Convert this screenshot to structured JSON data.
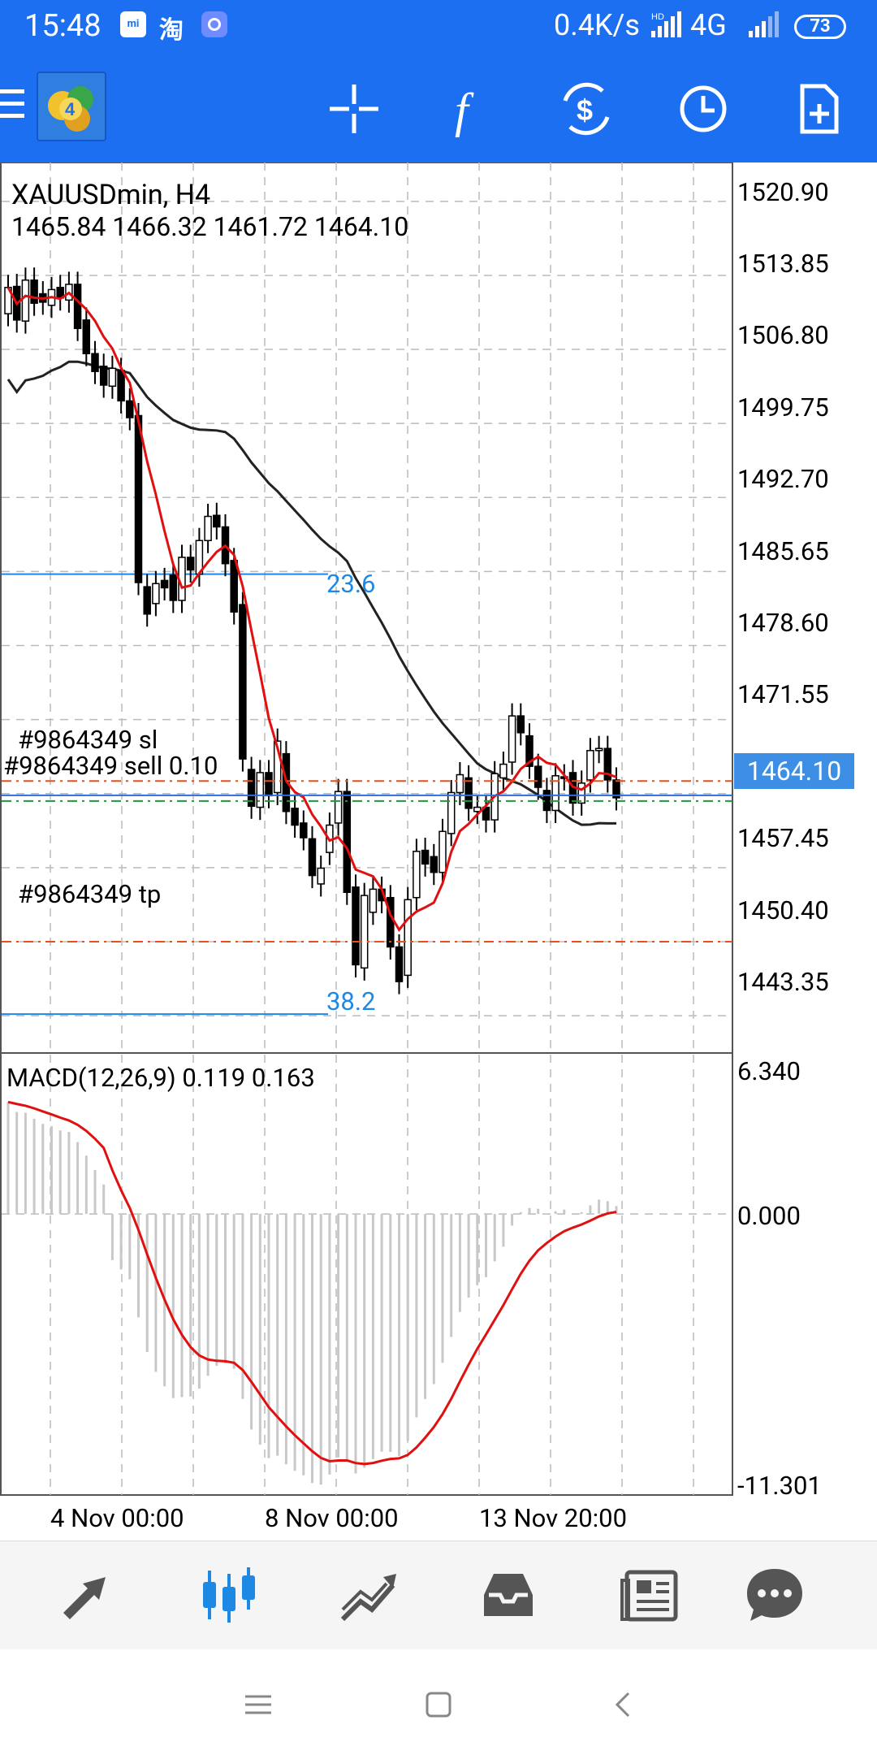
{
  "status_bar": {
    "time": "15:48",
    "mi_label": "mi",
    "tao_label": "淘",
    "net_speed": "0.4K/s",
    "hd_label": "HD",
    "network": "4G",
    "battery": "73"
  },
  "toolbar": {
    "buttons": [
      "crosshair",
      "indicators",
      "trade",
      "period",
      "new-order"
    ]
  },
  "chart": {
    "symbol_title": "XAUUSDmin, H4",
    "ohlc": "1465.84 1466.32 1461.72 1464.10",
    "price_axis": [
      "1520.90",
      "1513.85",
      "1506.80",
      "1499.75",
      "1492.70",
      "1485.65",
      "1478.60",
      "1471.55",
      "1457.45",
      "1450.40",
      "1443.35"
    ],
    "current_price": "1464.10",
    "fibo_23": "23.6",
    "fibo_38": "38.2",
    "order_sl": "#9864349 sl",
    "order_sell": "#9864349 sell 0.10",
    "order_tp": "#9864349 tp",
    "macd_title": "MACD(12,26,9) 0.119 0.163",
    "macd_axis_top": "6.340",
    "macd_axis_zero": "0.000",
    "macd_axis_bottom": "-11.301",
    "time_labels": [
      "4 Nov 00:00",
      "8 Nov 00:00",
      "13 Nov 20:00"
    ]
  },
  "chart_data": {
    "type": "candlestick",
    "symbol": "XAUUSDmin",
    "timeframe": "H4",
    "ylim": [
      1439.8,
      1524.6
    ],
    "open": [
      1510.2,
      1512.8,
      1509.5,
      1513.4,
      1512.1,
      1511.0,
      1512.7,
      1511.5,
      1513.0,
      1509.6,
      1506.4,
      1505.2,
      1503.3,
      1504.8,
      1501.9,
      1500.5,
      1484.2,
      1482.6,
      1484.8,
      1485.3,
      1482.9,
      1487.0,
      1485.4,
      1488.6,
      1491.0,
      1489.9,
      1486.7,
      1482.5,
      1466.8,
      1463.2,
      1466.5,
      1464.6,
      1468.3,
      1463.1,
      1461.7,
      1460.2,
      1455.9,
      1458.9,
      1461.7,
      1464.7,
      1455.6,
      1447.9,
      1453.2,
      1455.4,
      1454.6,
      1449.9,
      1447.2,
      1454.6,
      1459.1,
      1458.5,
      1457.0,
      1460.7,
      1464.6,
      1466.0,
      1462.8,
      1463.2,
      1462.0,
      1466.0,
      1467.5,
      1471.9,
      1470.0,
      1467.1,
      1464.8,
      1462.9,
      1466.1,
      1466.5,
      1463.6,
      1465.8,
      1468.6,
      1468.8,
      1465.8
    ],
    "close": [
      1512.7,
      1509.6,
      1513.4,
      1511.2,
      1511.3,
      1512.5,
      1511.7,
      1513.0,
      1508.8,
      1506.4,
      1504.7,
      1503.4,
      1505.0,
      1501.9,
      1500.3,
      1484.6,
      1481.6,
      1484.5,
      1484.1,
      1482.9,
      1487.0,
      1485.8,
      1488.6,
      1490.9,
      1489.9,
      1486.4,
      1481.8,
      1467.8,
      1463.3,
      1466.5,
      1464.3,
      1469.5,
      1462.8,
      1461.5,
      1460.3,
      1456.7,
      1457.4,
      1461.5,
      1464.7,
      1455.1,
      1448.2,
      1454.8,
      1455.4,
      1454.3,
      1449.9,
      1446.6,
      1454.4,
      1459.0,
      1457.8,
      1457.0,
      1460.9,
      1464.6,
      1466.3,
      1463.1,
      1463.2,
      1462.0,
      1466.4,
      1467.3,
      1471.9,
      1470.3,
      1467.1,
      1465.1,
      1462.9,
      1466.2,
      1466.0,
      1463.6,
      1465.5,
      1468.6,
      1468.8,
      1465.8,
      1464.1
    ],
    "ma_fast_color": "#e01010",
    "ma_slow_color": "#222222",
    "sl_price": 1465.7,
    "entry_price": 1464.1,
    "tp_price": 1450.4,
    "fibo_levels": [
      {
        "level": "23.6",
        "price": 1485.4
      },
      {
        "level": "38.2",
        "price": 1443.5
      }
    ],
    "macd": {
      "ylim": [
        -11.301,
        6.34
      ],
      "signal_color": "#e01010",
      "histogram_color": "#c8c8c8"
    }
  },
  "bottom_nav": {
    "items": [
      "quotes",
      "chart",
      "trade",
      "history",
      "news",
      "chat"
    ],
    "active": "chart"
  }
}
